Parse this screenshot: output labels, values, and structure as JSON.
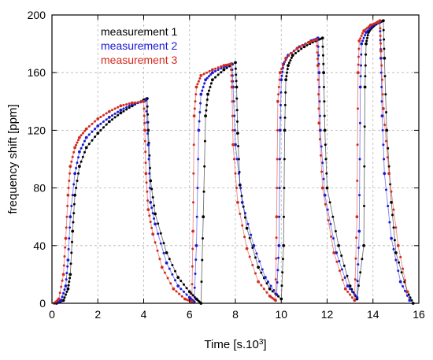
{
  "chart_data": {
    "type": "scatter",
    "xlabel": "Time [s.10",
    "xlabel_sup": "3",
    "xlabel_close": "]",
    "ylabel": "frequency shift  [ppm]",
    "xlim": [
      0,
      16
    ],
    "ylim": [
      0,
      200
    ],
    "x_ticks": [
      "0",
      "2",
      "4",
      "6",
      "8",
      "10",
      "12",
      "14",
      "16"
    ],
    "y_ticks": [
      "0",
      "40",
      "80",
      "120",
      "160",
      "200"
    ],
    "grid": true,
    "legend_position": "top-left",
    "series": [
      {
        "name": "measurement 1",
        "color": "#000000",
        "x": [
          0.2,
          0.5,
          0.7,
          0.8,
          0.9,
          1.0,
          1.2,
          1.5,
          2.0,
          2.5,
          3.0,
          3.5,
          4.0,
          4.15,
          4.2,
          4.3,
          4.5,
          5.0,
          5.5,
          6.0,
          6.3,
          6.5,
          6.6,
          6.7,
          6.8,
          7.0,
          7.5,
          8.0,
          8.05,
          8.1,
          8.2,
          8.5,
          9.0,
          9.5,
          10.0,
          10.1,
          10.15,
          10.2,
          10.3,
          10.5,
          11.0,
          11.5,
          11.8,
          11.85,
          11.9,
          12.0,
          12.5,
          13.0,
          13.3,
          13.6,
          13.65,
          13.7,
          13.8,
          14.0,
          14.3,
          14.45,
          14.5,
          14.6,
          14.8,
          15.0,
          15.5,
          15.75
        ],
        "y": [
          0,
          2,
          10,
          20,
          50,
          75,
          95,
          108,
          118,
          126,
          132,
          137,
          141,
          142,
          120,
          85,
          62,
          35,
          18,
          8,
          3,
          0,
          60,
          130,
          145,
          155,
          162,
          167,
          150,
          118,
          82,
          52,
          25,
          10,
          3,
          40,
          120,
          155,
          165,
          172,
          178,
          182,
          184,
          160,
          120,
          80,
          40,
          12,
          3,
          40,
          150,
          180,
          188,
          192,
          195,
          196,
          170,
          120,
          70,
          35,
          8,
          0
        ]
      },
      {
        "name": "measurement 2",
        "color": "#1a1ad6",
        "x": [
          0.2,
          0.4,
          0.6,
          0.7,
          0.8,
          1.0,
          1.2,
          1.5,
          2.0,
          2.5,
          3.0,
          3.5,
          4.0,
          4.1,
          4.2,
          4.3,
          4.5,
          5.0,
          5.5,
          6.0,
          6.2,
          6.3,
          6.4,
          6.5,
          6.7,
          7.0,
          7.5,
          7.85,
          7.9,
          8.0,
          8.3,
          8.8,
          9.3,
          9.8,
          9.9,
          9.95,
          10.0,
          10.1,
          10.3,
          10.8,
          11.3,
          11.6,
          11.65,
          11.7,
          11.9,
          12.4,
          12.9,
          13.3,
          13.4,
          13.45,
          13.5,
          13.7,
          14.0,
          14.3,
          14.35,
          14.4,
          14.5,
          14.8,
          15.2,
          15.6
        ],
        "y": [
          0,
          2,
          12,
          30,
          60,
          90,
          105,
          115,
          123,
          129,
          134,
          138,
          140,
          141,
          110,
          70,
          55,
          28,
          12,
          4,
          1,
          40,
          120,
          145,
          155,
          160,
          164,
          166,
          150,
          110,
          70,
          40,
          18,
          6,
          40,
          120,
          155,
          166,
          172,
          178,
          182,
          184,
          160,
          120,
          75,
          35,
          12,
          4,
          50,
          150,
          180,
          188,
          193,
          195,
          170,
          130,
          90,
          45,
          15,
          2
        ]
      },
      {
        "name": "measurement 3",
        "color": "#d42a1e",
        "x": [
          0.1,
          0.3,
          0.5,
          0.6,
          0.7,
          0.8,
          1.0,
          1.2,
          1.5,
          2.0,
          2.5,
          3.0,
          3.5,
          4.0,
          4.05,
          4.1,
          4.2,
          4.4,
          4.8,
          5.3,
          5.8,
          6.1,
          6.15,
          6.2,
          6.3,
          6.5,
          7.0,
          7.5,
          7.8,
          7.85,
          7.9,
          8.1,
          8.5,
          9.0,
          9.5,
          9.75,
          9.8,
          9.85,
          9.95,
          10.2,
          10.7,
          11.2,
          11.55,
          11.6,
          11.65,
          11.8,
          12.3,
          12.8,
          13.2,
          13.3,
          13.35,
          13.4,
          13.6,
          13.9,
          14.2,
          14.3,
          14.35,
          14.45,
          14.7,
          15.1,
          15.5
        ],
        "y": [
          0,
          3,
          20,
          45,
          75,
          95,
          108,
          115,
          121,
          128,
          133,
          137,
          139,
          140,
          120,
          90,
          65,
          48,
          25,
          10,
          3,
          1,
          50,
          130,
          150,
          158,
          162,
          165,
          166,
          150,
          110,
          70,
          38,
          15,
          5,
          2,
          60,
          140,
          160,
          170,
          177,
          181,
          183,
          165,
          125,
          80,
          35,
          10,
          2,
          60,
          160,
          182,
          189,
          193,
          195,
          196,
          175,
          135,
          90,
          40,
          8
        ]
      }
    ]
  }
}
